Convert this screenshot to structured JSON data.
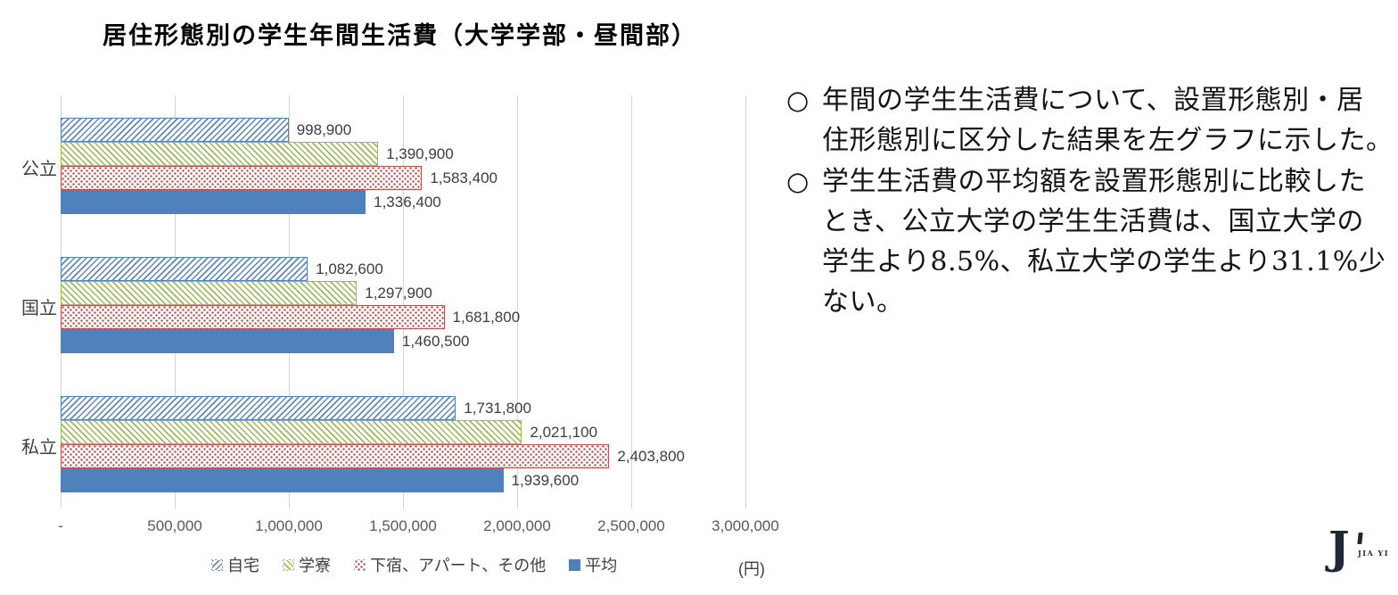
{
  "title": "居住形態別の学生年間生活費（大学学部・昼間部）",
  "chart_data": {
    "type": "bar",
    "orientation": "horizontal",
    "title": "居住形態別の学生年間生活費（大学学部・昼間部）",
    "categories": [
      {
        "key": "public",
        "label": "公立"
      },
      {
        "key": "national",
        "label": "国立"
      },
      {
        "key": "private",
        "label": "私立"
      }
    ],
    "series": [
      {
        "key": "home",
        "name": "自宅",
        "pattern": "hatch-backslash",
        "color": "#4F81BD",
        "values": [
          998900,
          1082600,
          1731800
        ]
      },
      {
        "key": "dormitory",
        "name": "学寮",
        "pattern": "hatch-slash",
        "color": "#9BBB59",
        "values": [
          1390900,
          1297900,
          2021100
        ]
      },
      {
        "key": "boarding-apartment-other",
        "name": "下宿、アパート、その他",
        "pattern": "dots",
        "color": "#C0504D",
        "values": [
          1583400,
          1681800,
          2403800
        ]
      },
      {
        "key": "average",
        "name": "平均",
        "pattern": "solid",
        "color": "#4F81BD",
        "values": [
          1336400,
          1460500,
          1939600
        ]
      }
    ],
    "x_ticks": [
      {
        "value": 0,
        "label": "-"
      },
      {
        "value": 500000,
        "label": "500,000"
      },
      {
        "value": 1000000,
        "label": "1,000,000"
      },
      {
        "value": 1500000,
        "label": "1,500,000"
      },
      {
        "value": 2000000,
        "label": "2,000,000"
      },
      {
        "value": 2500000,
        "label": "2,500,000"
      },
      {
        "value": 3000000,
        "label": "3,000,000"
      }
    ],
    "xlim": [
      0,
      3000000
    ],
    "unit_label": "(円)",
    "legend_position": "bottom",
    "grid": "vertical",
    "value_labels_shown": true,
    "colors": {
      "blue": "#4F81BD",
      "green": "#9BBB59",
      "red": "#C0504D",
      "gridline": "#d6d6d6"
    }
  },
  "notes": [
    {
      "marker": "○",
      "text": "年間の学生生活費について、設置形態別・居\n住形態別に区分した結果を左グラフに示した。"
    },
    {
      "marker": "○",
      "text": "学生生活費の平均額を設置形態別に比較した\nとき、公立大学の学生生活費は、国立大学の\n学生より8.5%、私立大学の学生より31.1%少\nない。"
    }
  ],
  "logo": {
    "mark": "J",
    "text": "JIA YI"
  }
}
